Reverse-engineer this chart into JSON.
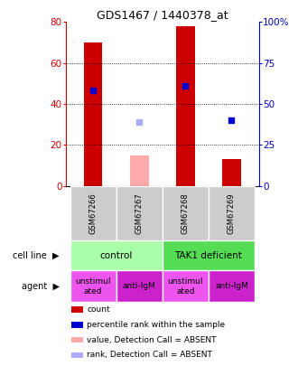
{
  "title": "GDS1467 / 1440378_at",
  "samples": [
    "GSM67266",
    "GSM67267",
    "GSM67268",
    "GSM67269"
  ],
  "bar_values": [
    70,
    15,
    78,
    13
  ],
  "bar_colors": [
    "#cc0000",
    "#ffaaaa",
    "#cc0000",
    "#cc0000"
  ],
  "percentile_values": [
    58,
    39,
    61,
    40
  ],
  "percentile_colors": [
    "#0000cc",
    "#aaaaff",
    "#0000cc",
    "#0000cc"
  ],
  "absent_bar": [
    false,
    true,
    false,
    false
  ],
  "absent_rank": [
    false,
    true,
    false,
    false
  ],
  "ylim_left": [
    0,
    80
  ],
  "ylim_right": [
    0,
    100
  ],
  "yticks_left": [
    0,
    20,
    40,
    60,
    80
  ],
  "yticks_right": [
    0,
    25,
    50,
    75,
    100
  ],
  "ytick_labels_left": [
    "0",
    "20",
    "40",
    "60",
    "80"
  ],
  "ytick_labels_right": [
    "0",
    "25",
    "50",
    "75",
    "100%"
  ],
  "dotted_levels": [
    20,
    40,
    60
  ],
  "cell_line_labels": [
    "control",
    "TAK1 deficient"
  ],
  "cell_line_spans": [
    [
      0,
      2
    ],
    [
      2,
      4
    ]
  ],
  "cell_line_colors": [
    "#aaffaa",
    "#55dd55"
  ],
  "agent_labels": [
    "unstimul\nated",
    "anti-IgM",
    "unstimul\nated",
    "anti-IgM"
  ],
  "agent_colors": [
    "#ee55ee",
    "#cc22cc",
    "#ee55ee",
    "#cc22cc"
  ],
  "legend_items": [
    {
      "color": "#cc0000",
      "label": "count"
    },
    {
      "color": "#0000cc",
      "label": "percentile rank within the sample"
    },
    {
      "color": "#ffaaaa",
      "label": "value, Detection Call = ABSENT"
    },
    {
      "color": "#aaaaff",
      "label": "rank, Detection Call = ABSENT"
    }
  ],
  "left_axis_color": "#cc0000",
  "right_axis_color": "#0000bb",
  "bar_width": 0.4,
  "marker_size": 4
}
